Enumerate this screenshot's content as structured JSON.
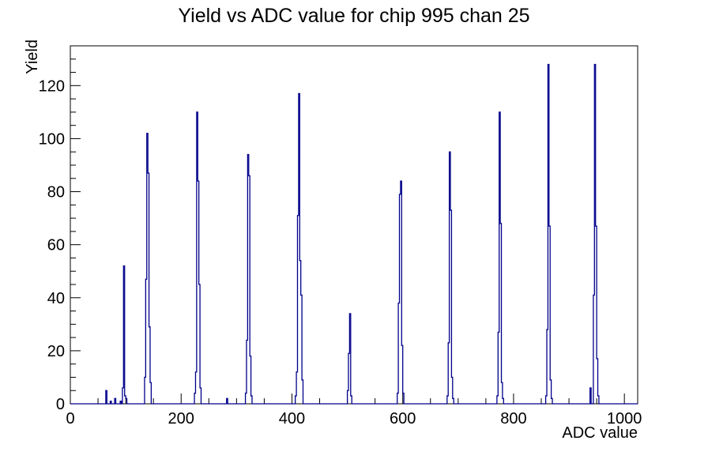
{
  "page": {
    "background": "#ffffff"
  },
  "chart_data": {
    "type": "bar",
    "style": "root-histogram-step-outline",
    "title": "Yield vs ADC value for chip 995 chan 25",
    "xlabel": "ADC value",
    "ylabel": "Yield",
    "xlim": [
      0,
      1024
    ],
    "ylim": [
      0,
      135
    ],
    "x_major_ticks": [
      0,
      200,
      400,
      600,
      800,
      1000
    ],
    "x_minor_step": 50,
    "y_major_ticks": [
      0,
      20,
      40,
      60,
      80,
      100,
      120
    ],
    "y_minor_step": 5,
    "grid": false,
    "legend": "none",
    "line_color": "#00008b",
    "axis_color": "#000000",
    "bin_width": 2,
    "bars": [
      {
        "x": 64,
        "y": 5
      },
      {
        "x": 72,
        "y": 1
      },
      {
        "x": 80,
        "y": 2
      },
      {
        "x": 90,
        "y": 1
      },
      {
        "x": 94,
        "y": 6
      },
      {
        "x": 96,
        "y": 52
      },
      {
        "x": 98,
        "y": 3
      },
      {
        "x": 100,
        "y": 2
      },
      {
        "x": 134,
        "y": 10
      },
      {
        "x": 136,
        "y": 47
      },
      {
        "x": 138,
        "y": 102
      },
      {
        "x": 140,
        "y": 87
      },
      {
        "x": 142,
        "y": 29
      },
      {
        "x": 144,
        "y": 8
      },
      {
        "x": 224,
        "y": 4
      },
      {
        "x": 226,
        "y": 12
      },
      {
        "x": 228,
        "y": 110
      },
      {
        "x": 230,
        "y": 84
      },
      {
        "x": 232,
        "y": 45
      },
      {
        "x": 234,
        "y": 6
      },
      {
        "x": 282,
        "y": 2
      },
      {
        "x": 316,
        "y": 4
      },
      {
        "x": 318,
        "y": 24
      },
      {
        "x": 320,
        "y": 94
      },
      {
        "x": 322,
        "y": 86
      },
      {
        "x": 324,
        "y": 18
      },
      {
        "x": 326,
        "y": 3
      },
      {
        "x": 406,
        "y": 3
      },
      {
        "x": 408,
        "y": 12
      },
      {
        "x": 410,
        "y": 71
      },
      {
        "x": 412,
        "y": 117
      },
      {
        "x": 414,
        "y": 54
      },
      {
        "x": 416,
        "y": 41
      },
      {
        "x": 418,
        "y": 9
      },
      {
        "x": 500,
        "y": 5
      },
      {
        "x": 502,
        "y": 19
      },
      {
        "x": 504,
        "y": 34
      },
      {
        "x": 506,
        "y": 3
      },
      {
        "x": 590,
        "y": 4
      },
      {
        "x": 592,
        "y": 38
      },
      {
        "x": 594,
        "y": 79
      },
      {
        "x": 596,
        "y": 84
      },
      {
        "x": 598,
        "y": 22
      },
      {
        "x": 600,
        "y": 4
      },
      {
        "x": 680,
        "y": 3
      },
      {
        "x": 682,
        "y": 23
      },
      {
        "x": 684,
        "y": 95
      },
      {
        "x": 686,
        "y": 73
      },
      {
        "x": 688,
        "y": 10
      },
      {
        "x": 690,
        "y": 2
      },
      {
        "x": 770,
        "y": 3
      },
      {
        "x": 772,
        "y": 27
      },
      {
        "x": 774,
        "y": 110
      },
      {
        "x": 776,
        "y": 68
      },
      {
        "x": 778,
        "y": 8
      },
      {
        "x": 780,
        "y": 2
      },
      {
        "x": 858,
        "y": 3
      },
      {
        "x": 860,
        "y": 28
      },
      {
        "x": 862,
        "y": 128
      },
      {
        "x": 864,
        "y": 67
      },
      {
        "x": 866,
        "y": 9
      },
      {
        "x": 868,
        "y": 2
      },
      {
        "x": 938,
        "y": 6
      },
      {
        "x": 944,
        "y": 41
      },
      {
        "x": 946,
        "y": 128
      },
      {
        "x": 948,
        "y": 67
      },
      {
        "x": 950,
        "y": 17
      },
      {
        "x": 952,
        "y": 3
      }
    ]
  }
}
